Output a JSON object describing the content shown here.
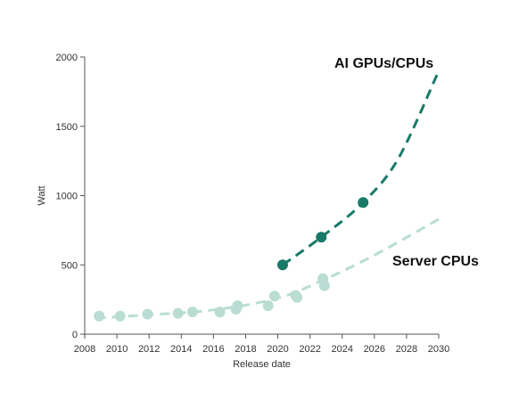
{
  "chart_data": {
    "type": "scatter",
    "xlabel": "Release date",
    "ylabel": "Watt",
    "xlim": [
      2008,
      2030
    ],
    "ylim": [
      0,
      2000
    ],
    "x_ticks": [
      2008,
      2010,
      2012,
      2014,
      2016,
      2018,
      2020,
      2022,
      2024,
      2026,
      2028,
      2030
    ],
    "y_ticks": [
      0,
      500,
      1000,
      1500,
      2000
    ],
    "grid": false,
    "series": [
      {
        "name": "Server CPUs",
        "color": "#b9ddd3",
        "points": [
          [
            2008.9,
            130
          ],
          [
            2010.2,
            130
          ],
          [
            2011.9,
            145
          ],
          [
            2013.8,
            150
          ],
          [
            2014.7,
            160
          ],
          [
            2016.4,
            160
          ],
          [
            2017.4,
            180
          ],
          [
            2017.5,
            205
          ],
          [
            2019.4,
            205
          ],
          [
            2019.8,
            275
          ],
          [
            2021.1,
            280
          ],
          [
            2021.2,
            265
          ],
          [
            2022.8,
            400
          ],
          [
            2022.9,
            350
          ]
        ],
        "trend": [
          [
            2008.7,
            115
          ],
          [
            2012,
            140
          ],
          [
            2016,
            175
          ],
          [
            2020,
            260
          ],
          [
            2023,
            400
          ],
          [
            2026,
            570
          ],
          [
            2030,
            830
          ]
        ]
      },
      {
        "name": "AI GPUs/CPUs",
        "color": "#1a7a68",
        "points": [
          [
            2020.3,
            500
          ],
          [
            2022.7,
            700
          ],
          [
            2025.3,
            950
          ]
        ],
        "trend": [
          [
            2020.3,
            500
          ],
          [
            2022.7,
            700
          ],
          [
            2025.3,
            950
          ],
          [
            2027.5,
            1270
          ],
          [
            2030,
            1900
          ]
        ]
      }
    ]
  }
}
